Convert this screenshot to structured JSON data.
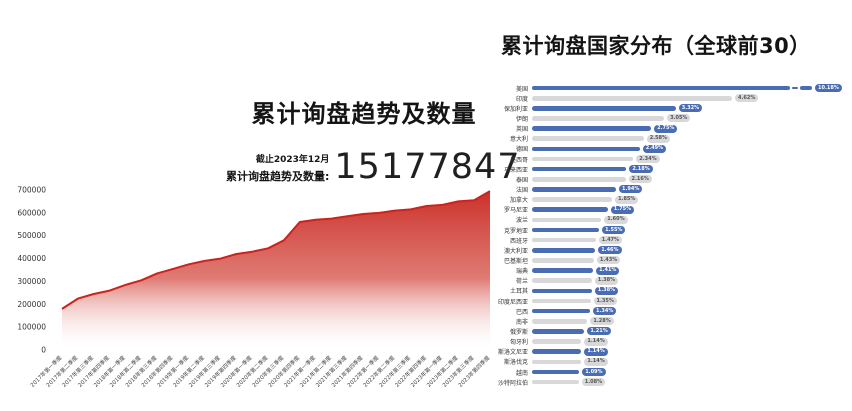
{
  "left_panel": {
    "title": "累计询盘趋势及数量",
    "asof": "截止2023年12月",
    "total_label": "累计询盘趋势及数量:",
    "total_value": "15177847"
  },
  "right_panel": {
    "title": "累计询盘国家分布（全球前30）"
  },
  "colors": {
    "area_red": "#ca2a23",
    "area_line": "#c9241d",
    "area_fade": "#ffffff",
    "bar_blue": "#4a6cb3",
    "bar_gray": "#d8d8da",
    "badge_blue_text": "#ffffff",
    "badge_gray_text": "#555555",
    "axis_text": "#333333",
    "title_text": "#141414"
  },
  "chart_data": [
    {
      "type": "area",
      "title": "累计询盘趋势及数量",
      "x": [
        "2017年第一季度",
        "2017年第二季度",
        "2017年第三季度",
        "2017年第四季度",
        "2018年第一季度",
        "2018年第二季度",
        "2018年第三季度",
        "2018年第四季度",
        "2019年第一季度",
        "2019年第二季度",
        "2019年第三季度",
        "2019年第四季度",
        "2020年第一季度",
        "2020年第二季度",
        "2020年第三季度",
        "2020年第四季度",
        "2021年第一季度",
        "2021年第二季度",
        "2021年第三季度",
        "2021年第四季度",
        "2022年第一季度",
        "2022年第二季度",
        "2022年第三季度",
        "2022年第四季度",
        "2023年第一季度",
        "2023年第二季度",
        "2023年第三季度",
        "2023年第四季度"
      ],
      "values": [
        180000,
        225000,
        245000,
        260000,
        285000,
        305000,
        335000,
        355000,
        375000,
        390000,
        400000,
        420000,
        430000,
        445000,
        480000,
        560000,
        570000,
        575000,
        585000,
        595000,
        600000,
        610000,
        615000,
        630000,
        635000,
        650000,
        655000,
        695000
      ],
      "ylim": [
        0,
        700000
      ],
      "yticks": [
        0,
        100000,
        200000,
        300000,
        400000,
        500000,
        600000,
        700000
      ],
      "grid": false,
      "legend": false
    },
    {
      "type": "bar",
      "orientation": "horizontal",
      "title": "累计询盘国家分布（全球前30）",
      "categories": [
        "美国",
        "印度",
        "保加利亚",
        "伊朗",
        "英国",
        "意大利",
        "德国",
        "墨西哥",
        "马来西亚",
        "泰国",
        "法国",
        "加拿大",
        "罗马尼亚",
        "波兰",
        "克罗地亚",
        "西班牙",
        "澳大利亚",
        "巴基斯坦",
        "瑞典",
        "荷兰",
        "土耳其",
        "印度尼西亚",
        "巴西",
        "南非",
        "俄罗斯",
        "匈牙利",
        "斯洛文尼亚",
        "斯洛伐克",
        "越南",
        "沙特阿拉伯"
      ],
      "values": [
        10.18,
        4.62,
        3.32,
        3.05,
        2.75,
        2.58,
        2.49,
        2.34,
        2.18,
        2.16,
        1.94,
        1.85,
        1.75,
        1.6,
        1.55,
        1.47,
        1.46,
        1.43,
        1.41,
        1.38,
        1.38,
        1.35,
        1.34,
        1.28,
        1.21,
        1.14,
        1.14,
        1.14,
        1.09,
        1.08
      ],
      "unit": "%",
      "broken_bar_index": 0,
      "color_pattern": "odd rows blue, even rows gray",
      "legend": false
    }
  ]
}
